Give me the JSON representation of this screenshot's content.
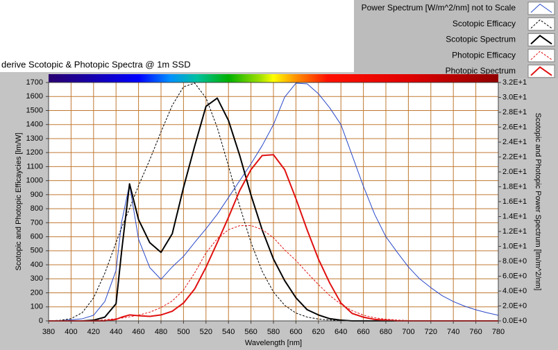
{
  "chart_data": {
    "type": "line",
    "title": "derive Scotopic & Photopic Spectra @ 1m SSD",
    "xlabel": "Wavelength [nm]",
    "ylabel": "Scotopic and Photopic Efficaycies [lm/W]",
    "y2label": "Scotopic and Photopic Power Spectrum [lm/m^2/nm]",
    "x": [
      380,
      390,
      400,
      410,
      420,
      430,
      440,
      445,
      452,
      460,
      470,
      480,
      490,
      500,
      510,
      520,
      530,
      540,
      550,
      560,
      570,
      580,
      590,
      600,
      610,
      620,
      630,
      640,
      650,
      660,
      670,
      680,
      690,
      700,
      710,
      720,
      730,
      740,
      750,
      760,
      770,
      780
    ],
    "xlim": [
      380,
      780
    ],
    "xticks": [
      380,
      400,
      420,
      440,
      460,
      480,
      500,
      520,
      540,
      560,
      580,
      600,
      620,
      640,
      660,
      680,
      700,
      720,
      740,
      760,
      780
    ],
    "ylim": [
      0,
      1700
    ],
    "yticks": [
      0,
      100,
      200,
      300,
      400,
      500,
      600,
      700,
      800,
      900,
      1000,
      1100,
      1200,
      1300,
      1400,
      1500,
      1600,
      1700
    ],
    "y2lim": [
      0,
      32
    ],
    "y2ticks": [
      {
        "value": 0,
        "label": "0.0E+0"
      },
      {
        "value": 2,
        "label": "2.0E+0"
      },
      {
        "value": 4,
        "label": "4.0E+0"
      },
      {
        "value": 6,
        "label": "6.0E+0"
      },
      {
        "value": 8,
        "label": "8.0E+0"
      },
      {
        "value": 10,
        "label": "1.0E+1"
      },
      {
        "value": 12,
        "label": "1.2E+1"
      },
      {
        "value": 14,
        "label": "1.4E+1"
      },
      {
        "value": 16,
        "label": "1.6E+1"
      },
      {
        "value": 18,
        "label": "1.8E+1"
      },
      {
        "value": 20,
        "label": "2.0E+1"
      },
      {
        "value": 22,
        "label": "2.2E+1"
      },
      {
        "value": 24,
        "label": "2.4E+1"
      },
      {
        "value": 26,
        "label": "2.6E+1"
      },
      {
        "value": 28,
        "label": "2.8E+1"
      },
      {
        "value": 30,
        "label": "3.0E+1"
      },
      {
        "value": 32,
        "label": "3.2E+1"
      }
    ],
    "grid": true,
    "grid_color": "#c07830",
    "legend": "top-right",
    "series": [
      {
        "name": "Power Spectrum [W/m^2/nm] not to Scale",
        "color": "#2848c8",
        "dash": false,
        "width": 1,
        "values": [
          0,
          2,
          8,
          15,
          40,
          138,
          360,
          706,
          973,
          583,
          380,
          296,
          385,
          460,
          560,
          657,
          760,
          880,
          1000,
          1120,
          1250,
          1400,
          1596,
          1695,
          1690,
          1620,
          1520,
          1400,
          1180,
          960,
          760,
          600,
          490,
          385,
          300,
          237,
          180,
          138,
          105,
          79,
          58,
          40
        ]
      },
      {
        "name": "Scotopic Efficacy",
        "color": "#000000",
        "dash": true,
        "width": 1,
        "values": [
          1,
          4,
          16,
          59,
          164,
          340,
          558,
          666,
          800,
          964,
          1149,
          1348,
          1537,
          1669,
          1695,
          1590,
          1379,
          1105,
          818,
          559,
          353,
          206,
          111,
          56,
          27,
          13,
          6,
          3,
          1,
          1,
          0,
          0,
          0,
          0,
          0,
          0,
          0,
          0,
          0,
          0,
          0,
          0
        ]
      },
      {
        "name": "Scotopic Spectrum",
        "color": "#000000",
        "dash": false,
        "width": 2,
        "axis": "y2",
        "values": [
          0,
          0,
          0,
          0,
          0.1,
          0.5,
          2.3,
          9.4,
          18.4,
          13.6,
          10.5,
          9.2,
          11.7,
          17.9,
          23.5,
          28.8,
          29.9,
          26.9,
          22.2,
          16.9,
          12.2,
          8.3,
          5.4,
          3.1,
          1.5,
          0.8,
          0.3,
          0.1,
          0,
          0,
          0,
          0,
          0,
          0,
          0,
          0,
          0,
          0,
          0,
          0,
          0,
          0
        ]
      },
      {
        "name": "Photopic Efficacy",
        "color": "#e01010",
        "dash": true,
        "width": 1,
        "values": [
          0,
          0.1,
          0.3,
          0.8,
          2.7,
          7.9,
          15.6,
          20,
          29,
          41,
          62,
          95,
          142,
          220,
          343,
          485,
          586,
          650,
          679,
          680,
          651,
          593,
          506,
          431,
          343,
          259,
          181,
          119,
          73,
          41,
          22,
          12,
          6,
          3,
          1.4,
          0.7,
          0.3,
          0.2,
          0.1,
          0,
          0,
          0
        ]
      },
      {
        "name": "Photopic Spectrum",
        "color": "#e01010",
        "dash": false,
        "width": 2,
        "axis": "y2",
        "values": [
          0,
          0,
          0,
          0,
          0,
          0,
          0.2,
          0.5,
          0.8,
          0.7,
          0.6,
          0.8,
          1.3,
          2.4,
          4.3,
          7.2,
          10.5,
          13.9,
          17.5,
          20.3,
          22.2,
          22.3,
          20.3,
          16.4,
          12.2,
          8.3,
          5.1,
          2.4,
          1.0,
          0.5,
          0.2,
          0.1,
          0,
          0,
          0,
          0,
          0,
          0,
          0,
          0,
          0,
          0
        ]
      }
    ]
  }
}
